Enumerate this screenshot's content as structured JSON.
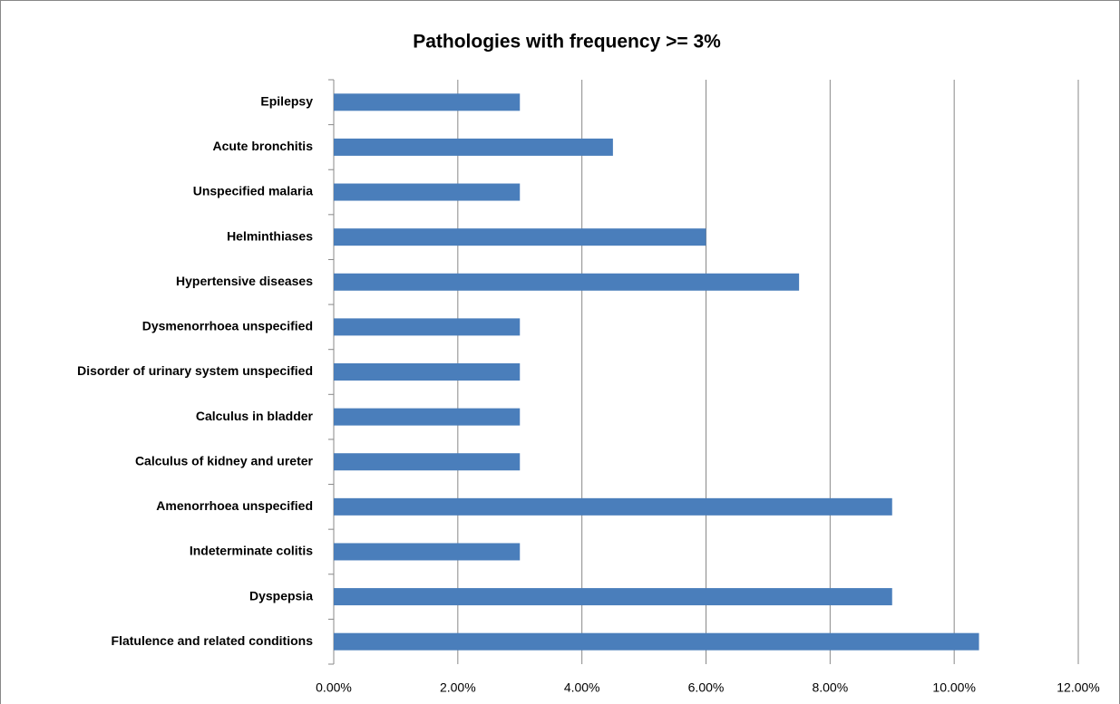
{
  "chart_data": {
    "type": "bar",
    "orientation": "horizontal",
    "title": "Pathologies with frequency >= 3%",
    "categories": [
      "Epilepsy",
      "Acute bronchitis",
      "Unspecified malaria",
      "Helminthiases",
      "Hypertensive diseases",
      "Dysmenorrhoea unspecified",
      "Disorder of urinary system unspecified",
      "Calculus in bladder",
      "Calculus of kidney and ureter",
      "Amenorrhoea unspecified",
      "Indeterminate colitis",
      "Dyspepsia",
      "Flatulence and related conditions"
    ],
    "values": [
      3,
      4.5,
      3,
      6,
      7.5,
      3,
      3,
      3,
      3,
      9,
      3,
      9,
      10.4
    ],
    "color": "#4a7ebb",
    "xlim": [
      0,
      12
    ],
    "xticks": [
      {
        "value": 0,
        "label": "0.00%"
      },
      {
        "value": 2,
        "label": "2.00%"
      },
      {
        "value": 4,
        "label": "4.00%"
      },
      {
        "value": 6,
        "label": "6.00%"
      },
      {
        "value": 8,
        "label": "8.00%"
      },
      {
        "value": 10,
        "label": "10.00%"
      },
      {
        "value": 12,
        "label": "12.00%"
      }
    ],
    "grid": true
  }
}
